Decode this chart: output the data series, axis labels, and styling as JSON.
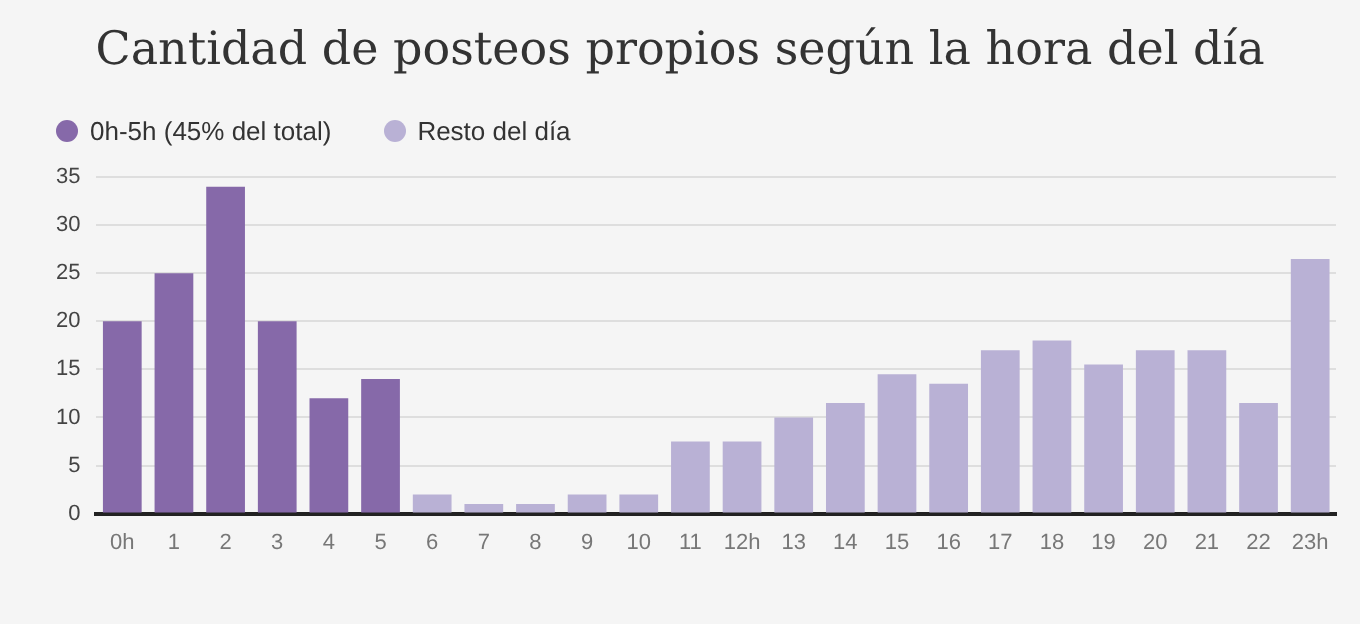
{
  "chart_data": {
    "type": "bar",
    "title": "Cantidad de posteos propios según la hora del día",
    "categories": [
      "0h",
      "1",
      "2",
      "3",
      "4",
      "5",
      "6",
      "7",
      "8",
      "9",
      "10",
      "11",
      "12h",
      "13",
      "14",
      "15",
      "16",
      "17",
      "18",
      "19",
      "20",
      "21",
      "22",
      "23h"
    ],
    "series": [
      {
        "name": "0h-5h (45% del total)",
        "color": "#8669a9",
        "values": [
          20,
          25,
          34,
          20,
          12,
          14,
          null,
          null,
          null,
          null,
          null,
          null,
          null,
          null,
          null,
          null,
          null,
          null,
          null,
          null,
          null,
          null,
          null,
          null
        ]
      },
      {
        "name": "Resto del día",
        "color": "#b9b1d5",
        "values": [
          null,
          null,
          null,
          null,
          null,
          null,
          2,
          1,
          1,
          2,
          2,
          7.5,
          7.5,
          10,
          11.5,
          14.5,
          13.5,
          17,
          18,
          15.5,
          17,
          17,
          11.5,
          26.5
        ]
      }
    ],
    "ylim": [
      0,
      35
    ],
    "yticks": [
      0,
      5,
      10,
      15,
      20,
      25,
      30,
      35
    ],
    "grid": "y",
    "legend": "top left"
  }
}
